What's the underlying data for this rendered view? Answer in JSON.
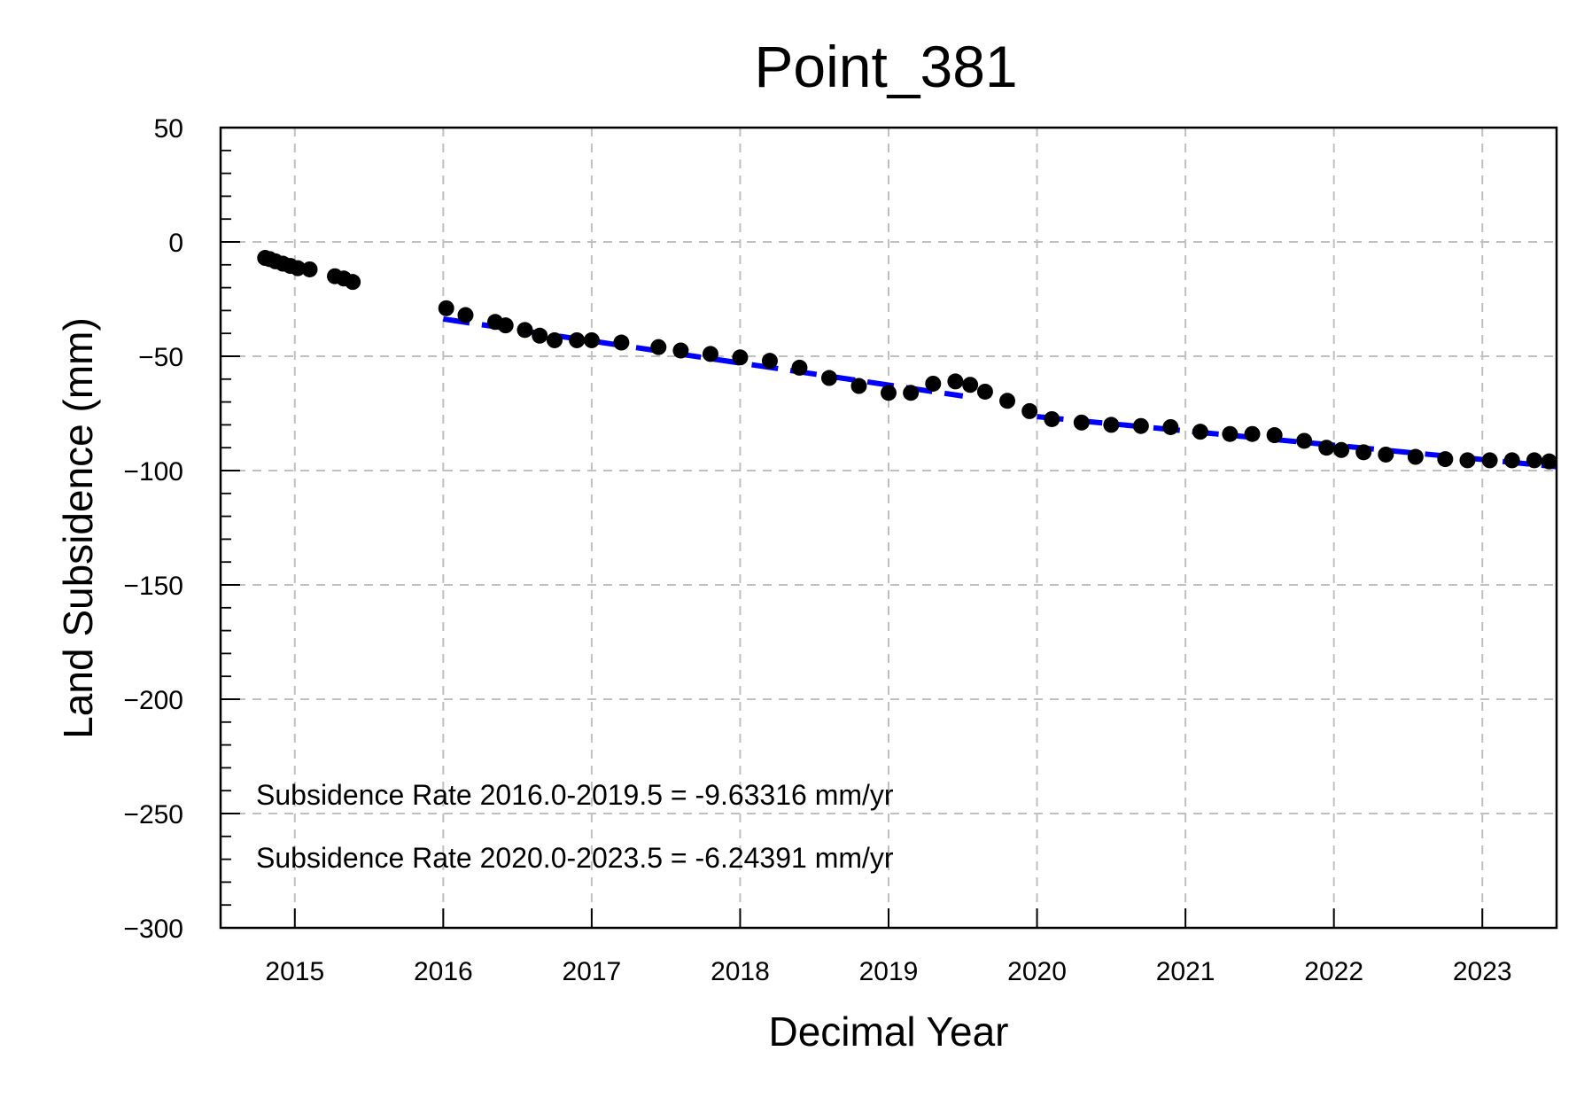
{
  "chart_data": {
    "type": "scatter",
    "title": "Point_381",
    "xlabel": "Decimal Year",
    "ylabel": "Land Subsidence (mm)",
    "xlim": [
      2014.5,
      2023.5
    ],
    "ylim": [
      -300,
      50
    ],
    "xticks": [
      2015,
      2016,
      2017,
      2018,
      2019,
      2020,
      2021,
      2022,
      2023
    ],
    "yticks": [
      50,
      0,
      -50,
      -100,
      -150,
      -200,
      -250,
      -300
    ],
    "ytick_labels": [
      "50",
      "0",
      "−50",
      "−100",
      "−150",
      "−200",
      "−250",
      "−300"
    ],
    "grid": true,
    "colors": {
      "points": "#000000",
      "fit": "#0000ff",
      "grid": "#c0c0c0"
    },
    "series": [
      {
        "type": "scatter",
        "x": [
          2014.8,
          2014.83,
          2014.87,
          2014.92,
          2014.97,
          2015.02,
          2015.1,
          2015.27,
          2015.33,
          2015.39,
          2016.02,
          2016.15,
          2016.35,
          2016.42,
          2016.55,
          2016.65,
          2016.75,
          2016.9,
          2017.0,
          2017.2,
          2017.45,
          2017.6,
          2017.8,
          2018.0,
          2018.2,
          2018.4,
          2018.6,
          2018.8,
          2019.0,
          2019.15,
          2019.3,
          2019.45,
          2019.55,
          2019.65,
          2019.8,
          2019.95,
          2020.1,
          2020.3,
          2020.5,
          2020.7,
          2020.9,
          2021.1,
          2021.3,
          2021.45,
          2021.6,
          2021.8,
          2021.95,
          2022.05,
          2022.2,
          2022.35,
          2022.55,
          2022.75,
          2022.9,
          2023.05,
          2023.2,
          2023.35,
          2023.45
        ],
        "y": [
          -7,
          -7.5,
          -8.5,
          -9.5,
          -10.5,
          -11.5,
          -12,
          -15,
          -16,
          -17.5,
          -29,
          -32,
          -35,
          -36.5,
          -38.5,
          -41,
          -43,
          -43,
          -43,
          -44,
          -46,
          -47.5,
          -49,
          -50.5,
          -52,
          -55,
          -59.5,
          -63,
          -66,
          -66,
          -62,
          -61,
          -62.5,
          -65.5,
          -69.5,
          -74,
          -77.5,
          -79,
          -80,
          -80.5,
          -81,
          -83,
          -84,
          -84,
          -84.5,
          -87,
          -90,
          -91,
          -92,
          -93,
          -94,
          -95,
          -95.5,
          -95.5,
          -95.5,
          -95.5,
          -96
        ]
      },
      {
        "type": "line",
        "style": "dashed",
        "x": [
          2016.0,
          2019.5
        ],
        "y": [
          -33.7,
          -67.4
        ]
      },
      {
        "type": "line",
        "style": "dashed",
        "x": [
          2020.0,
          2023.5
        ],
        "y": [
          -76.4,
          -98.3
        ]
      }
    ],
    "annotations": [
      "Subsidence Rate 2016.0-2019.5 = -9.63316 mm/yr",
      "Subsidence Rate 2020.0-2023.5 = -6.24391 mm/yr"
    ]
  }
}
